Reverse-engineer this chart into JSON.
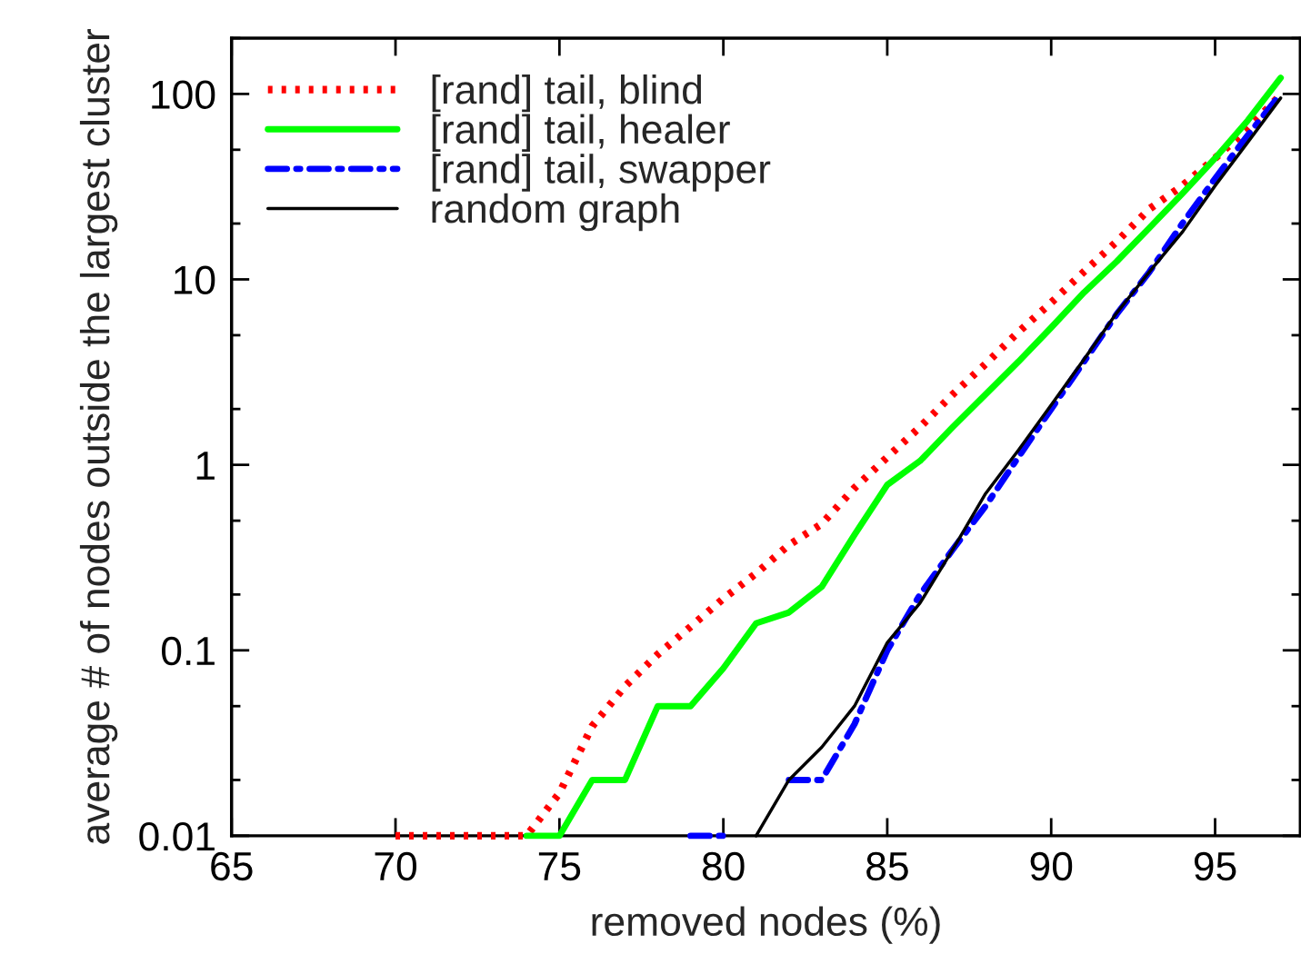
{
  "chart_data": {
    "type": "line",
    "xlabel": "removed nodes (%)",
    "ylabel": "average # of nodes outside the largest cluster",
    "log": "y",
    "xlim": [
      65,
      97.6
    ],
    "ylim": [
      0.01,
      200
    ],
    "xticks": [
      65,
      70,
      75,
      80,
      85,
      90,
      95
    ],
    "yticks": [
      0.01,
      0.1,
      1,
      10,
      100
    ],
    "grid": false,
    "legend": "top left",
    "marker": "none",
    "series": [
      {
        "name": "[rand] tail, blind",
        "color": "#ff0000",
        "line_style": "dotted",
        "x": [
          70,
          71,
          72,
          73,
          74,
          75,
          76,
          77,
          78,
          79,
          80,
          81,
          82,
          83,
          84,
          85,
          86,
          87,
          88,
          89,
          90,
          91,
          92,
          93,
          94,
          95,
          96,
          97
        ],
        "values": [
          0.01,
          0.01,
          0.01,
          0.01,
          0.01,
          0.017,
          0.039,
          0.064,
          0.095,
          0.134,
          0.19,
          0.26,
          0.37,
          0.48,
          0.75,
          1.1,
          1.6,
          2.4,
          3.5,
          5.2,
          7.5,
          11,
          16,
          24,
          32,
          45,
          65,
          99
        ]
      },
      {
        "name": "[rand] tail, healer",
        "color": "#00ff00",
        "line_style": "solid",
        "x": [
          74,
          75,
          76,
          77,
          78,
          79,
          80,
          81,
          82,
          83,
          84,
          85,
          86,
          87,
          88,
          89,
          90,
          91,
          92,
          93,
          94,
          95,
          96,
          97
        ],
        "values": [
          0.01,
          0.01,
          0.02,
          0.02,
          0.05,
          0.05,
          0.08,
          0.14,
          0.16,
          0.22,
          0.42,
          0.78,
          1.05,
          1.6,
          2.4,
          3.6,
          5.5,
          8.5,
          12.5,
          19,
          29,
          45,
          72,
          122
        ]
      },
      {
        "name": "[rand] tail, swapper",
        "color": "#0000ff",
        "line_style": "dashdot",
        "x": [
          79,
          80,
          81,
          82,
          83,
          84,
          85,
          86,
          87,
          88,
          89,
          90,
          91,
          92,
          93,
          94,
          95,
          96,
          97
        ],
        "values": [
          0.01,
          0.01,
          null,
          0.02,
          0.02,
          0.04,
          0.1,
          0.2,
          0.35,
          0.6,
          1.1,
          2.0,
          3.6,
          6.5,
          11,
          20,
          35,
          60,
          100
        ]
      },
      {
        "name": "random graph",
        "color": "#000000",
        "line_style": "solid",
        "x": [
          81,
          82,
          83,
          84,
          85,
          86,
          87,
          88,
          89,
          90,
          91,
          92,
          93,
          94,
          95,
          96,
          97
        ],
        "values": [
          0.01,
          0.02,
          0.03,
          0.05,
          0.11,
          0.18,
          0.35,
          0.7,
          1.2,
          2.1,
          3.7,
          6.6,
          11,
          18,
          32,
          55,
          95
        ]
      }
    ]
  }
}
